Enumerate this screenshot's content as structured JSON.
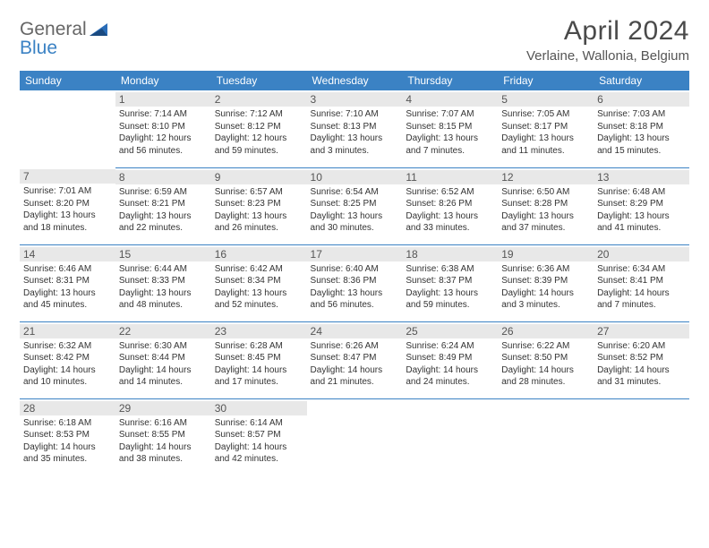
{
  "logo": {
    "word1": "General",
    "word2": "Blue"
  },
  "title": "April 2024",
  "location": "Verlaine, Wallonia, Belgium",
  "colors": {
    "header_bg": "#3b82c4",
    "header_fg": "#ffffff",
    "daynum_bg": "#e8e8e8",
    "border": "#3b82c4",
    "text": "#333333"
  },
  "weekdays": [
    "Sunday",
    "Monday",
    "Tuesday",
    "Wednesday",
    "Thursday",
    "Friday",
    "Saturday"
  ],
  "weeks": [
    [
      {
        "day": "",
        "sunrise": "",
        "sunset": "",
        "daylight1": "",
        "daylight2": ""
      },
      {
        "day": "1",
        "sunrise": "Sunrise: 7:14 AM",
        "sunset": "Sunset: 8:10 PM",
        "daylight1": "Daylight: 12 hours",
        "daylight2": "and 56 minutes."
      },
      {
        "day": "2",
        "sunrise": "Sunrise: 7:12 AM",
        "sunset": "Sunset: 8:12 PM",
        "daylight1": "Daylight: 12 hours",
        "daylight2": "and 59 minutes."
      },
      {
        "day": "3",
        "sunrise": "Sunrise: 7:10 AM",
        "sunset": "Sunset: 8:13 PM",
        "daylight1": "Daylight: 13 hours",
        "daylight2": "and 3 minutes."
      },
      {
        "day": "4",
        "sunrise": "Sunrise: 7:07 AM",
        "sunset": "Sunset: 8:15 PM",
        "daylight1": "Daylight: 13 hours",
        "daylight2": "and 7 minutes."
      },
      {
        "day": "5",
        "sunrise": "Sunrise: 7:05 AM",
        "sunset": "Sunset: 8:17 PM",
        "daylight1": "Daylight: 13 hours",
        "daylight2": "and 11 minutes."
      },
      {
        "day": "6",
        "sunrise": "Sunrise: 7:03 AM",
        "sunset": "Sunset: 8:18 PM",
        "daylight1": "Daylight: 13 hours",
        "daylight2": "and 15 minutes."
      }
    ],
    [
      {
        "day": "7",
        "sunrise": "Sunrise: 7:01 AM",
        "sunset": "Sunset: 8:20 PM",
        "daylight1": "Daylight: 13 hours",
        "daylight2": "and 18 minutes."
      },
      {
        "day": "8",
        "sunrise": "Sunrise: 6:59 AM",
        "sunset": "Sunset: 8:21 PM",
        "daylight1": "Daylight: 13 hours",
        "daylight2": "and 22 minutes."
      },
      {
        "day": "9",
        "sunrise": "Sunrise: 6:57 AM",
        "sunset": "Sunset: 8:23 PM",
        "daylight1": "Daylight: 13 hours",
        "daylight2": "and 26 minutes."
      },
      {
        "day": "10",
        "sunrise": "Sunrise: 6:54 AM",
        "sunset": "Sunset: 8:25 PM",
        "daylight1": "Daylight: 13 hours",
        "daylight2": "and 30 minutes."
      },
      {
        "day": "11",
        "sunrise": "Sunrise: 6:52 AM",
        "sunset": "Sunset: 8:26 PM",
        "daylight1": "Daylight: 13 hours",
        "daylight2": "and 33 minutes."
      },
      {
        "day": "12",
        "sunrise": "Sunrise: 6:50 AM",
        "sunset": "Sunset: 8:28 PM",
        "daylight1": "Daylight: 13 hours",
        "daylight2": "and 37 minutes."
      },
      {
        "day": "13",
        "sunrise": "Sunrise: 6:48 AM",
        "sunset": "Sunset: 8:29 PM",
        "daylight1": "Daylight: 13 hours",
        "daylight2": "and 41 minutes."
      }
    ],
    [
      {
        "day": "14",
        "sunrise": "Sunrise: 6:46 AM",
        "sunset": "Sunset: 8:31 PM",
        "daylight1": "Daylight: 13 hours",
        "daylight2": "and 45 minutes."
      },
      {
        "day": "15",
        "sunrise": "Sunrise: 6:44 AM",
        "sunset": "Sunset: 8:33 PM",
        "daylight1": "Daylight: 13 hours",
        "daylight2": "and 48 minutes."
      },
      {
        "day": "16",
        "sunrise": "Sunrise: 6:42 AM",
        "sunset": "Sunset: 8:34 PM",
        "daylight1": "Daylight: 13 hours",
        "daylight2": "and 52 minutes."
      },
      {
        "day": "17",
        "sunrise": "Sunrise: 6:40 AM",
        "sunset": "Sunset: 8:36 PM",
        "daylight1": "Daylight: 13 hours",
        "daylight2": "and 56 minutes."
      },
      {
        "day": "18",
        "sunrise": "Sunrise: 6:38 AM",
        "sunset": "Sunset: 8:37 PM",
        "daylight1": "Daylight: 13 hours",
        "daylight2": "and 59 minutes."
      },
      {
        "day": "19",
        "sunrise": "Sunrise: 6:36 AM",
        "sunset": "Sunset: 8:39 PM",
        "daylight1": "Daylight: 14 hours",
        "daylight2": "and 3 minutes."
      },
      {
        "day": "20",
        "sunrise": "Sunrise: 6:34 AM",
        "sunset": "Sunset: 8:41 PM",
        "daylight1": "Daylight: 14 hours",
        "daylight2": "and 7 minutes."
      }
    ],
    [
      {
        "day": "21",
        "sunrise": "Sunrise: 6:32 AM",
        "sunset": "Sunset: 8:42 PM",
        "daylight1": "Daylight: 14 hours",
        "daylight2": "and 10 minutes."
      },
      {
        "day": "22",
        "sunrise": "Sunrise: 6:30 AM",
        "sunset": "Sunset: 8:44 PM",
        "daylight1": "Daylight: 14 hours",
        "daylight2": "and 14 minutes."
      },
      {
        "day": "23",
        "sunrise": "Sunrise: 6:28 AM",
        "sunset": "Sunset: 8:45 PM",
        "daylight1": "Daylight: 14 hours",
        "daylight2": "and 17 minutes."
      },
      {
        "day": "24",
        "sunrise": "Sunrise: 6:26 AM",
        "sunset": "Sunset: 8:47 PM",
        "daylight1": "Daylight: 14 hours",
        "daylight2": "and 21 minutes."
      },
      {
        "day": "25",
        "sunrise": "Sunrise: 6:24 AM",
        "sunset": "Sunset: 8:49 PM",
        "daylight1": "Daylight: 14 hours",
        "daylight2": "and 24 minutes."
      },
      {
        "day": "26",
        "sunrise": "Sunrise: 6:22 AM",
        "sunset": "Sunset: 8:50 PM",
        "daylight1": "Daylight: 14 hours",
        "daylight2": "and 28 minutes."
      },
      {
        "day": "27",
        "sunrise": "Sunrise: 6:20 AM",
        "sunset": "Sunset: 8:52 PM",
        "daylight1": "Daylight: 14 hours",
        "daylight2": "and 31 minutes."
      }
    ],
    [
      {
        "day": "28",
        "sunrise": "Sunrise: 6:18 AM",
        "sunset": "Sunset: 8:53 PM",
        "daylight1": "Daylight: 14 hours",
        "daylight2": "and 35 minutes."
      },
      {
        "day": "29",
        "sunrise": "Sunrise: 6:16 AM",
        "sunset": "Sunset: 8:55 PM",
        "daylight1": "Daylight: 14 hours",
        "daylight2": "and 38 minutes."
      },
      {
        "day": "30",
        "sunrise": "Sunrise: 6:14 AM",
        "sunset": "Sunset: 8:57 PM",
        "daylight1": "Daylight: 14 hours",
        "daylight2": "and 42 minutes."
      },
      {
        "day": "",
        "sunrise": "",
        "sunset": "",
        "daylight1": "",
        "daylight2": ""
      },
      {
        "day": "",
        "sunrise": "",
        "sunset": "",
        "daylight1": "",
        "daylight2": ""
      },
      {
        "day": "",
        "sunrise": "",
        "sunset": "",
        "daylight1": "",
        "daylight2": ""
      },
      {
        "day": "",
        "sunrise": "",
        "sunset": "",
        "daylight1": "",
        "daylight2": ""
      }
    ]
  ]
}
